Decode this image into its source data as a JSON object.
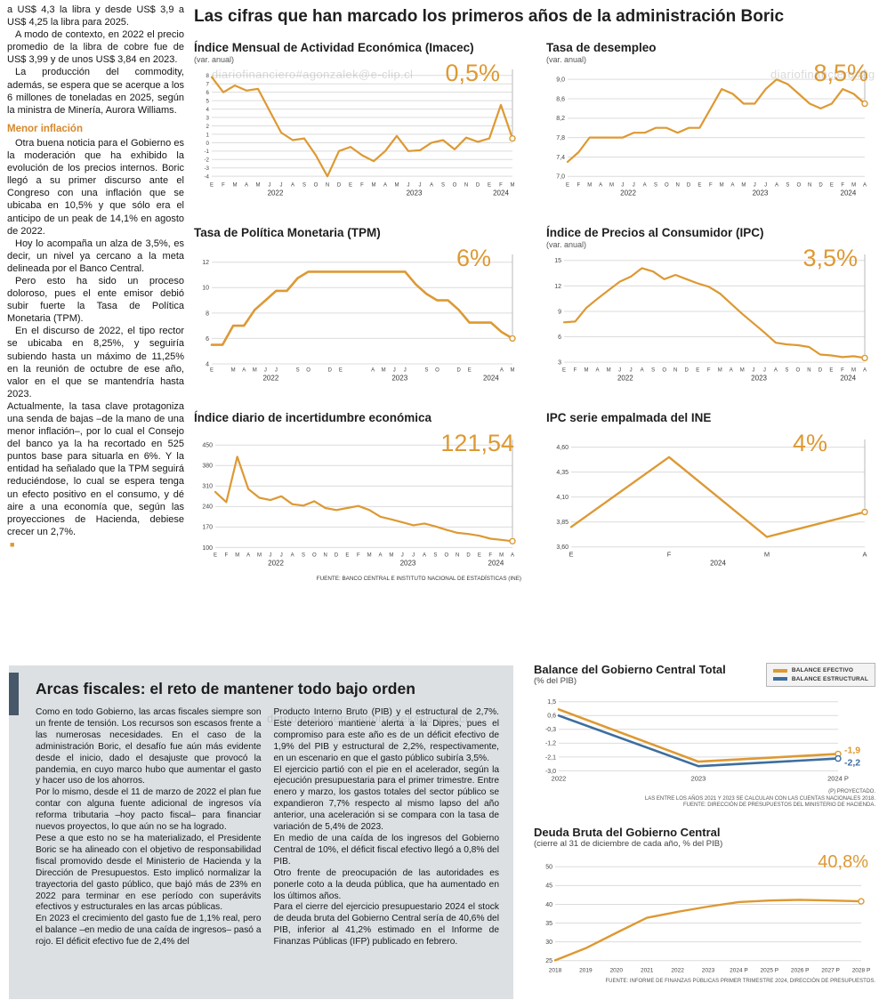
{
  "watermark": "diariofinanciero#agonzalek@e-clip.cl",
  "colors": {
    "orange": "#DD9933",
    "blue": "#3D6E9E"
  },
  "left_column": {
    "paragraphs": [
      "a US$ 4,3 la libra y desde US$ 3,9 a US$ 4,25 la libra para 2025.",
      "A modo de contexto, en 2022 el precio promedio de la libra de cobre fue de US$ 3,99 y de unos US$ 3,84 en 2023.",
      "La producción del commodity, además, se espera que se acerque a los 6 millones de toneladas en 2025, según la ministra de Minería, Aurora Williams."
    ],
    "subhead": "Menor inflación",
    "paragraphs2": [
      "Otra buena noticia para el Gobierno es la moderación que ha exhibido la evolución de los precios internos. Boric llegó a su primer discurso ante el Congreso con una inflación que se ubicaba en 10,5% y que sólo era el anticipo de un peak de 14,1% en agosto de 2022.",
      "Hoy lo acompaña un alza de 3,5%, es decir, un nivel ya cercano a la meta delineada por el Banco Central.",
      "Pero esto ha sido un proceso doloroso, pues el ente emisor debió subir fuerte la Tasa de Política Monetaria (TPM).",
      "En el discurso de 2022, el tipo rector se ubicaba en 8,25%, y seguiría subiendo hasta un máximo de 11,25% en la reunión de octubre de ese año, valor en el que se mantendría hasta 2023.",
      "Actualmente, la tasa clave protagoniza una senda de bajas –de la mano de una menor inflación–, por lo cual el Consejo del banco ya la ha recortado en 525 puntos base para situarla en 6%. Y la entidad ha señalado que la TPM seguirá reduciéndose, lo cual se espera tenga un efecto positivo en el consumo, y dé aire a una economía que, según las proyecciones de Hacienda, debiese crecer un 2,7%."
    ],
    "end_mark": "■"
  },
  "main": {
    "title": "Las cifras que han marcado los primeros años de la administración Boric",
    "source": "FUENTE: BANCO CENTRAL E INSTITUTO NACIONAL DE ESTADÍSTICAS (INE)"
  },
  "bottom": {
    "title": "Arcas fiscales: el reto de mantener todo bajo orden",
    "col1": [
      "Como en todo Gobierno, las arcas fiscales siempre son un frente de tensión. Los recursos son escasos frente a las numerosas necesidades. En el caso de la administración Boric, el desafío fue aún más evidente desde el inicio, dado el desajuste que provocó la pandemia, en cuyo marco hubo que aumentar el gasto y hacer uso de los ahorros.",
      "Por lo mismo, desde el 11 de marzo de 2022 el plan fue contar con alguna fuente adicional de ingresos vía reforma tributaria –hoy pacto fiscal– para financiar nuevos proyectos, lo que aún no se ha logrado.",
      "Pese a que esto no se ha materializado, el Presidente Boric se ha alineado con el objetivo de responsabilidad fiscal promovido desde el Ministerio de Hacienda y la Dirección de Presupuestos. Esto implicó normalizar la trayectoria del gasto público, que bajó más de 23% en 2022 para terminar en ese período con superávits efectivos y estructurales en las arcas públicas.",
      "En 2023 el crecimiento del gasto fue de 1,1% real, pero el balance –en medio de una caída de ingresos– pasó a rojo. El déficit efectivo fue de 2,4% del"
    ],
    "col2": [
      "Producto Interno Bruto (PIB) y el estructural de 2,7%. Este deterioro mantiene alerta a la Dipres, pues el compromiso para este año es de un déficit efectivo de 1,9% del PIB y estructural de 2,2%, respectivamente, en un escenario en que el gasto público subiría 3,5%.",
      "El ejercicio partió con el pie en el acelerador, según la ejecución presupuestaria para el primer trimestre. Entre enero y marzo, los gastos totales del sector público se expandieron 7,7% respecto al mismo lapso del año anterior, una aceleración si se compara con la tasa de variación de 5,4% de 2023.",
      "En medio de una caída de los ingresos del Gobierno Central de 10%, el déficit fiscal efectivo llegó a 0,8% del PIB.",
      "Otro frente de preocupación de las autoridades es ponerle coto a la deuda pública, que ha aumentado en los últimos años.",
      "Para el cierre del ejercicio presupuestario 2024 el stock de deuda bruta del Gobierno Central sería de 40,6% del PIB, inferior al 41,2% estimado en el Informe de Finanzas Públicas (IFP) publicado en febrero."
    ],
    "balance_notes": [
      "(P) PROYECTADO.",
      "LAS ENTRE LOS AÑOS 2021 Y 2023 SE CALCULAN CON LAS CUENTAS NACIONALES 2018.",
      "FUENTE: DIRECCIÓN DE PRESUPUESTOS DEL MINISTERIO DE HACIENDA."
    ],
    "debt_source": "FUENTE: INFORME DE FINANZAS PÚBLICAS PRIMER TRIMESTRE 2024, DIRECCIÓN DE PRESUPUESTOS."
  },
  "chart_data": [
    {
      "type": "line",
      "title": "Índice Mensual de Actividad Económica (Imacec)",
      "subtitle": "(var. anual)",
      "value_label": "0,5%",
      "ylim": [
        -4.3,
        8.4
      ],
      "y_ticks": [
        8,
        7,
        6,
        5,
        4,
        3,
        2,
        1,
        0,
        -1,
        -2,
        -3,
        -4
      ],
      "y_tick_labels": [
        "8",
        "7",
        "6",
        "5",
        "4",
        "3",
        "2",
        "1",
        "0",
        "-1",
        "-2",
        "-3",
        "-4"
      ],
      "y_font": 6.2,
      "x_labels": [
        "E",
        "F",
        "M",
        "A",
        "M",
        "J",
        "J",
        "A",
        "S",
        "O",
        "N",
        "D",
        "E",
        "F",
        "M",
        "A",
        "M",
        "J",
        "J",
        "A",
        "S",
        "O",
        "N",
        "D",
        "E",
        "F",
        "M"
      ],
      "years": [
        {
          "label": "2022",
          "start": 0,
          "end": 11
        },
        {
          "label": "2023",
          "start": 12,
          "end": 23
        },
        {
          "label": "2024",
          "start": 24,
          "end": 26
        }
      ],
      "series": [
        {
          "name": "Imacec",
          "color": "orange",
          "values": [
            7.8,
            6.0,
            6.8,
            6.2,
            6.4,
            3.8,
            1.2,
            0.3,
            0.5,
            -1.5,
            -4.0,
            -1.0,
            -0.5,
            -1.5,
            -2.2,
            -1.0,
            0.8,
            -1.0,
            -0.9,
            0.0,
            0.3,
            -0.8,
            0.6,
            0.1,
            0.5,
            4.5,
            0.5
          ]
        }
      ],
      "end_marker": true,
      "callout": true,
      "stroke": 2.2,
      "margins": {
        "l": 20,
        "r": 12,
        "t": 8,
        "b": 24
      }
    },
    {
      "type": "line",
      "title": "Tasa de desempleo",
      "subtitle": "(var. anual)",
      "value_label": "8,5%",
      "ylim": [
        6.95,
        9.15
      ],
      "y_ticks": [
        9.0,
        8.6,
        8.2,
        7.8,
        7.4,
        7.0
      ],
      "y_tick_labels": [
        "9,0",
        "8,6",
        "8,2",
        "7,8",
        "7,4",
        "7,0"
      ],
      "y_font": 7,
      "x_labels": [
        "E",
        "F",
        "M",
        "A",
        "M",
        "J",
        "J",
        "A",
        "S",
        "O",
        "N",
        "D",
        "E",
        "F",
        "M",
        "A",
        "M",
        "J",
        "J",
        "A",
        "S",
        "O",
        "N",
        "D",
        "E",
        "F",
        "M",
        "A"
      ],
      "years": [
        {
          "label": "2022",
          "start": 0,
          "end": 11
        },
        {
          "label": "2023",
          "start": 12,
          "end": 23
        },
        {
          "label": "2024",
          "start": 24,
          "end": 27
        }
      ],
      "series": [
        {
          "name": "Desempleo",
          "color": "orange",
          "values": [
            7.3,
            7.5,
            7.8,
            7.8,
            7.8,
            7.8,
            7.9,
            7.9,
            8.0,
            8.0,
            7.9,
            8.0,
            8.0,
            8.4,
            8.8,
            8.7,
            8.5,
            8.5,
            8.8,
            9.0,
            8.9,
            8.7,
            8.5,
            8.4,
            8.5,
            8.8,
            8.7,
            8.5
          ]
        }
      ],
      "end_marker": true,
      "callout": true,
      "stroke": 2.2,
      "margins": {
        "l": 24,
        "r": 12,
        "t": 8,
        "b": 24
      }
    },
    {
      "type": "line",
      "title": "Tasa de Política Monetaria (TPM)",
      "subtitle": "",
      "value_label": "6%",
      "ylim": [
        4,
        12.4
      ],
      "y_ticks": [
        12,
        10,
        8,
        6,
        4
      ],
      "y_tick_labels": [
        "12",
        "10",
        "8",
        "6",
        "4"
      ],
      "y_font": 7,
      "x_labels": [
        "E",
        "",
        "M",
        "A",
        "M",
        "J",
        "J",
        "",
        "S",
        "O",
        "",
        "D",
        "E",
        "",
        "",
        "A",
        "M",
        "J",
        "J",
        "",
        "S",
        "O",
        "",
        "D",
        "E",
        "",
        "",
        "A",
        "M"
      ],
      "years": [
        {
          "label": "2022",
          "start": 0,
          "end": 11
        },
        {
          "label": "2023",
          "start": 12,
          "end": 23
        },
        {
          "label": "2024",
          "start": 24,
          "end": 28
        }
      ],
      "series": [
        {
          "name": "TPM",
          "color": "orange",
          "values": [
            5.5,
            5.5,
            7.0,
            7.0,
            8.25,
            9.0,
            9.75,
            9.75,
            10.75,
            11.25,
            11.25,
            11.25,
            11.25,
            11.25,
            11.25,
            11.25,
            11.25,
            11.25,
            11.25,
            10.25,
            9.5,
            9.0,
            9.0,
            8.25,
            7.25,
            7.25,
            7.25,
            6.5,
            6.0
          ]
        }
      ],
      "end_marker": true,
      "callout": true,
      "stroke": 2.6,
      "margins": {
        "l": 20,
        "r": 12,
        "t": 8,
        "b": 24
      }
    },
    {
      "type": "line",
      "title": "Índice de Precios al Consumidor (IPC)",
      "subtitle": "(var. anual)",
      "value_label": "3,5%",
      "ylim": [
        2.8,
        15.4
      ],
      "y_ticks": [
        15,
        12,
        9,
        6,
        3
      ],
      "y_tick_labels": [
        "15",
        "12",
        "9",
        "6",
        "3"
      ],
      "y_font": 7,
      "x_labels": [
        "E",
        "F",
        "M",
        "A",
        "M",
        "J",
        "J",
        "A",
        "S",
        "O",
        "N",
        "D",
        "E",
        "F",
        "M",
        "A",
        "M",
        "J",
        "J",
        "A",
        "S",
        "O",
        "N",
        "D",
        "E",
        "F",
        "M",
        "A"
      ],
      "years": [
        {
          "label": "2022",
          "start": 0,
          "end": 11
        },
        {
          "label": "2023",
          "start": 12,
          "end": 23
        },
        {
          "label": "2024",
          "start": 24,
          "end": 27
        }
      ],
      "series": [
        {
          "name": "IPC",
          "color": "orange",
          "values": [
            7.7,
            7.8,
            9.4,
            10.5,
            11.5,
            12.5,
            13.1,
            14.1,
            13.7,
            12.8,
            13.3,
            12.8,
            12.3,
            11.9,
            11.1,
            9.9,
            8.7,
            7.6,
            6.5,
            5.3,
            5.1,
            5.0,
            4.8,
            3.9,
            3.8,
            3.6,
            3.7,
            3.5
          ]
        }
      ],
      "end_marker": true,
      "callout": true,
      "stroke": 2.2,
      "margins": {
        "l": 20,
        "r": 12,
        "t": 8,
        "b": 24
      }
    },
    {
      "type": "line",
      "title": "Índice diario de incertidumbre económica",
      "subtitle": "",
      "value_label": "121,54",
      "ylim": [
        95,
        460
      ],
      "y_ticks": [
        450,
        380,
        310,
        240,
        170,
        100
      ],
      "y_tick_labels": [
        "450",
        "380",
        "310",
        "240",
        "170",
        "100"
      ],
      "y_font": 7,
      "x_labels": [
        "E",
        "F",
        "M",
        "A",
        "M",
        "J",
        "J",
        "A",
        "S",
        "O",
        "N",
        "D",
        "E",
        "F",
        "M",
        "A",
        "M",
        "J",
        "J",
        "A",
        "S",
        "O",
        "N",
        "D",
        "E",
        "F",
        "M",
        "A"
      ],
      "years": [
        {
          "label": "2022",
          "start": 0,
          "end": 11
        },
        {
          "label": "2023",
          "start": 12,
          "end": 23
        },
        {
          "label": "2024",
          "start": 24,
          "end": 27
        }
      ],
      "series": [
        {
          "name": "Incertidumbre",
          "color": "orange",
          "values": [
            290,
            255,
            410,
            300,
            270,
            262,
            275,
            248,
            243,
            258,
            235,
            228,
            235,
            242,
            228,
            205,
            196,
            186,
            176,
            182,
            172,
            160,
            150,
            146,
            140,
            130,
            126,
            121.54
          ]
        }
      ],
      "end_marker": true,
      "callout": true,
      "stroke": 2.2,
      "margins": {
        "l": 24,
        "r": 12,
        "t": 8,
        "b": 24
      }
    },
    {
      "type": "line",
      "title": "IPC serie empalmada del INE",
      "subtitle": "",
      "value_label": "4%",
      "ylim": [
        3.58,
        4.65
      ],
      "y_ticks": [
        4.6,
        4.35,
        4.1,
        3.85,
        3.6
      ],
      "y_tick_labels": [
        "4,60",
        "4,35",
        "4,10",
        "3,85",
        "3,60"
      ],
      "y_font": 7,
      "x_labels": [
        "E",
        "F",
        "M",
        "A"
      ],
      "x_font": 7.5,
      "years": [
        {
          "label": "2024",
          "start": 0,
          "end": 3
        }
      ],
      "series": [
        {
          "name": "IPC INE",
          "color": "orange",
          "values": [
            3.8,
            4.5,
            3.7,
            3.95
          ]
        }
      ],
      "end_marker": true,
      "callout": true,
      "stroke": 2.4,
      "margins": {
        "l": 28,
        "r": 12,
        "t": 8,
        "b": 24
      }
    },
    {
      "type": "line",
      "title": "Balance del Gobierno Central Total",
      "subtitle": "(% del PIB)",
      "ylim": [
        -3.15,
        1.6
      ],
      "y_ticks": [
        1.5,
        0.6,
        -0.3,
        -1.2,
        -2.1,
        -3.0
      ],
      "y_tick_labels": [
        "1,5",
        "0,6",
        "-0,3",
        "-1,2",
        "-2,1",
        "-3,0"
      ],
      "y_font": 7,
      "x_labels": [
        "2022",
        "2023",
        "2024 P"
      ],
      "x_font": 7.5,
      "series": [
        {
          "name": "BALANCE EFECTIVO",
          "color": "orange",
          "values": [
            1.0,
            -2.4,
            -1.9
          ],
          "end_label": "-1,9",
          "label_dy": -1
        },
        {
          "name": "BALANCE ESTRUCTURAL",
          "color": "blue",
          "values": [
            0.6,
            -2.7,
            -2.2
          ],
          "end_label": "-2,2",
          "label_dy": 8
        }
      ],
      "end_marker": true,
      "callout": false,
      "stroke": 2.6,
      "margins": {
        "l": 28,
        "r": 42,
        "t": 8,
        "b": 16
      },
      "legend_position": "top-right"
    },
    {
      "type": "line",
      "title": "Deuda Bruta del Gobierno Central",
      "subtitle": "(cierre al 31 de diciembre de cada año, % del PIB)",
      "value_label": "40,8%",
      "ylim": [
        24,
        51
      ],
      "y_ticks": [
        50,
        45,
        40,
        35,
        30,
        25
      ],
      "y_tick_labels": [
        "50",
        "45",
        "40",
        "35",
        "30",
        "25"
      ],
      "y_font": 7,
      "x_labels": [
        "2018",
        "2019",
        "2020",
        "2021",
        "2022",
        "2023",
        "2024 P",
        "2025 P",
        "2026 P",
        "2027 P",
        "2028 P"
      ],
      "x_font": 6.5,
      "series": [
        {
          "name": "Deuda bruta",
          "color": "orange",
          "values": [
            25.1,
            28.3,
            32.4,
            36.4,
            38.0,
            39.4,
            40.6,
            41.0,
            41.2,
            41.0,
            40.8
          ]
        }
      ],
      "end_marker": true,
      "callout": false,
      "stroke": 2.4,
      "margins": {
        "l": 24,
        "r": 16,
        "t": 12,
        "b": 14
      }
    }
  ]
}
